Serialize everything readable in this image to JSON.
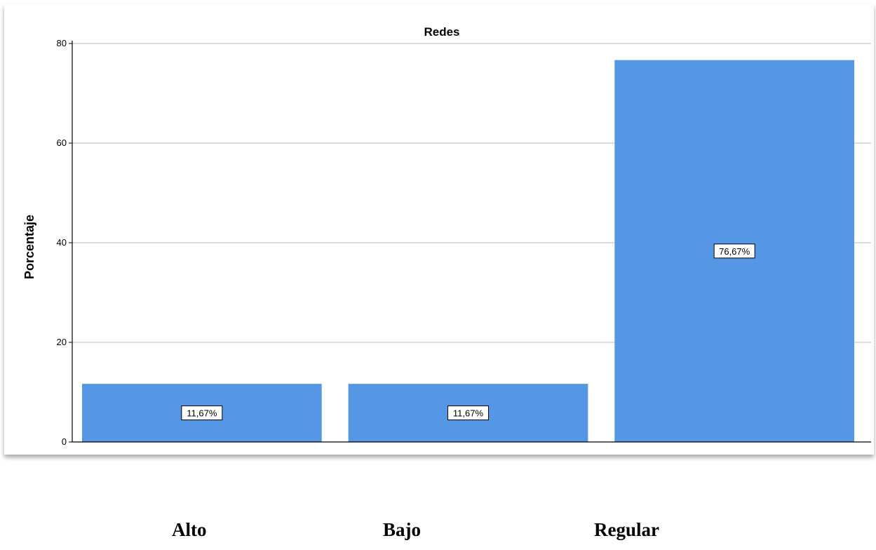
{
  "chart_data": {
    "type": "bar",
    "title": "Redes",
    "ylabel": "Porcentaje",
    "xlabel": "",
    "categories": [
      "Alto",
      "Bajo",
      "Regular"
    ],
    "values": [
      11.67,
      11.67,
      76.67
    ],
    "data_labels": [
      "11,67%",
      "11,67%",
      "76,67%"
    ],
    "ylim": [
      0,
      80
    ],
    "yticks": [
      0,
      20,
      40,
      60,
      80
    ],
    "grid": true,
    "bar_color": "#5597e4",
    "gridline_color": "#c8c8c8"
  },
  "category_labels_below": [
    "Alto",
    "Bajo",
    "Regular"
  ]
}
